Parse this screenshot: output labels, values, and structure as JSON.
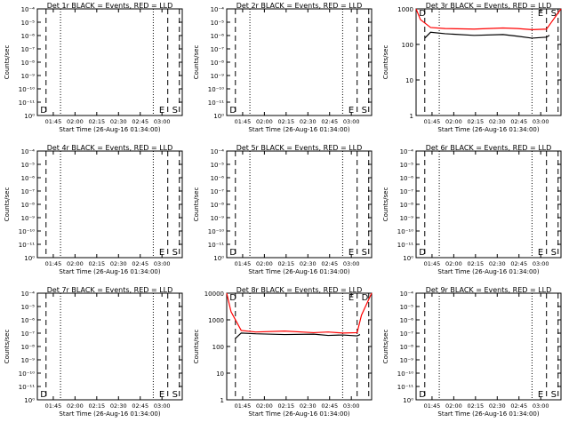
{
  "figure": {
    "xlabel": "Start Time (26-Aug-16 01:34:00)",
    "ylabel": "Counts/sec",
    "x_tick_labels": [
      "01:45",
      "02:00",
      "02:15",
      "02:30",
      "02:45",
      "03:00"
    ],
    "colors": {
      "events": "#000000",
      "lld": "#ff0000",
      "axes": "#000000"
    }
  },
  "chart_data": [
    {
      "type": "line",
      "title": "Det 1r BLACK = Events, RED = LLD",
      "scale": "log",
      "yticks": [
        "10⁻⁴",
        "10⁻⁵",
        "10⁻⁶",
        "10⁻⁷",
        "10⁻⁸",
        "10⁻⁹",
        "10⁻¹⁰",
        "10⁻¹¹",
        "10⁰"
      ],
      "markers": [
        {
          "label": "D",
          "pos": "left"
        },
        {
          "label": "E",
          "pos": "e"
        },
        {
          "label": "S",
          "pos": "s"
        }
      ],
      "series": []
    },
    {
      "type": "line",
      "title": "Det 2r BLACK = Events, RED = LLD",
      "scale": "log",
      "yticks": [
        "10⁻⁴",
        "10⁻⁵",
        "10⁻⁶",
        "10⁻⁷",
        "10⁻⁸",
        "10⁻⁹",
        "10⁻¹⁰",
        "10⁻¹¹",
        "10⁰"
      ],
      "markers": [
        {
          "label": "D",
          "pos": "left"
        },
        {
          "label": "E",
          "pos": "e"
        },
        {
          "label": "S",
          "pos": "s"
        }
      ],
      "series": []
    },
    {
      "type": "line",
      "title": "Det 3r BLACK = Events, RED = LLD",
      "scale": "log",
      "ylim": [
        1,
        1000
      ],
      "yticks": [
        "1000",
        "100",
        "10",
        "1"
      ],
      "markers": [
        {
          "label": "D",
          "pos": "left"
        },
        {
          "label": "E",
          "pos": "e"
        },
        {
          "label": "S",
          "pos": "s"
        }
      ],
      "series": [
        {
          "color": "#ff0000",
          "x": [
            0.0,
            0.3,
            1.0,
            2.0,
            4.0,
            6.0,
            7.0,
            8.0,
            9.0,
            9.3,
            10.0
          ],
          "y": [
            1000,
            500,
            300,
            280,
            270,
            290,
            280,
            260,
            270,
            400,
            1000
          ]
        },
        {
          "color": "#000000",
          "x": [
            0.6,
            1.0,
            2.0,
            4.0,
            6.0,
            7.0,
            8.0,
            9.0,
            9.2
          ],
          "y": [
            150,
            220,
            200,
            180,
            190,
            170,
            150,
            160,
            180
          ]
        }
      ]
    },
    {
      "type": "line",
      "title": "Det 4r BLACK = Events, RED = LLD",
      "scale": "log",
      "yticks": [
        "10⁻⁴",
        "10⁻⁵",
        "10⁻⁶",
        "10⁻⁷",
        "10⁻⁸",
        "10⁻⁹",
        "10⁻¹⁰",
        "10⁻¹¹",
        "10⁰"
      ],
      "markers": [
        {
          "label": "E",
          "pos": "e"
        },
        {
          "label": "S",
          "pos": "s"
        }
      ],
      "series": []
    },
    {
      "type": "line",
      "title": "Det 5r BLACK = Events, RED = LLD",
      "scale": "log",
      "yticks": [
        "10⁻⁴",
        "10⁻⁵",
        "10⁻⁶",
        "10⁻⁷",
        "10⁻⁸",
        "10⁻⁹",
        "10⁻¹⁰",
        "10⁻¹¹",
        "10⁰"
      ],
      "markers": [
        {
          "label": "D",
          "pos": "left"
        },
        {
          "label": "E",
          "pos": "e"
        },
        {
          "label": "S",
          "pos": "s"
        }
      ],
      "series": []
    },
    {
      "type": "line",
      "title": "Det 6r BLACK = Events, RED = LLD",
      "scale": "log",
      "yticks": [
        "10⁻⁴",
        "10⁻⁵",
        "10⁻⁶",
        "10⁻⁷",
        "10⁻⁸",
        "10⁻⁹",
        "10⁻¹⁰",
        "10⁻¹¹",
        "10⁰"
      ],
      "markers": [
        {
          "label": "D",
          "pos": "left"
        },
        {
          "label": "E",
          "pos": "e"
        },
        {
          "label": "S",
          "pos": "s"
        }
      ],
      "series": []
    },
    {
      "type": "line",
      "title": "Det 7r BLACK = Events, RED = LLD",
      "scale": "log",
      "yticks": [
        "10⁻⁴",
        "10⁻⁵",
        "10⁻⁶",
        "10⁻⁷",
        "10⁻⁸",
        "10⁻⁹",
        "10⁻¹⁰",
        "10⁻¹¹",
        "10⁰"
      ],
      "markers": [
        {
          "label": "D",
          "pos": "left"
        },
        {
          "label": "E",
          "pos": "e"
        },
        {
          "label": "S",
          "pos": "s"
        }
      ],
      "series": []
    },
    {
      "type": "line",
      "title": "Det 8r BLACK = Events, RED = LLD",
      "scale": "log",
      "ylim": [
        1,
        10000
      ],
      "yticks": [
        "10000",
        "1000",
        "100",
        "10",
        "1"
      ],
      "markers": [
        {
          "label": "D",
          "pos": "left"
        },
        {
          "label": "E",
          "pos": "e"
        },
        {
          "label": "D",
          "pos": "s"
        }
      ],
      "series": [
        {
          "color": "#ff0000",
          "x": [
            0.0,
            0.3,
            1.0,
            2.0,
            4.0,
            6.0,
            7.0,
            8.0,
            9.0,
            9.3,
            10.0
          ],
          "y": [
            10000,
            2000,
            400,
            350,
            380,
            330,
            350,
            320,
            330,
            1500,
            10000
          ]
        },
        {
          "color": "#000000",
          "x": [
            0.6,
            1.0,
            2.0,
            4.0,
            6.0,
            7.0,
            8.0,
            9.0,
            9.2
          ],
          "y": [
            200,
            320,
            300,
            280,
            290,
            260,
            270,
            250,
            280
          ]
        }
      ]
    },
    {
      "type": "line",
      "title": "Det 9r BLACK = Events, RED = LLD",
      "scale": "log",
      "yticks": [
        "10⁻⁴",
        "10⁻⁵",
        "10⁻⁶",
        "10⁻⁷",
        "10⁻⁸",
        "10⁻⁹",
        "10⁻¹⁰",
        "10⁻¹¹",
        "10⁰"
      ],
      "markers": [
        {
          "label": "D",
          "pos": "left"
        },
        {
          "label": "E",
          "pos": "e"
        },
        {
          "label": "S",
          "pos": "s"
        }
      ],
      "series": []
    }
  ]
}
